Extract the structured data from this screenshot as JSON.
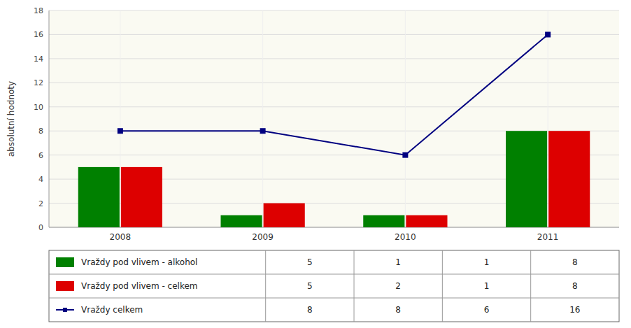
{
  "chart_data": {
    "type": "bar",
    "ylabel": "absolutní hodnoty",
    "categories": [
      "2008",
      "2009",
      "2010",
      "2011"
    ],
    "series": [
      {
        "name": "Vraždy pod vlivem - alkohol",
        "type": "bar",
        "color": "#008000",
        "values": [
          5,
          1,
          1,
          8
        ]
      },
      {
        "name": "Vraždy pod vlivem - celkem",
        "type": "bar",
        "color": "#dd0000",
        "values": [
          5,
          2,
          1,
          8
        ]
      },
      {
        "name": "Vraždy celkem",
        "type": "line",
        "color": "#000080",
        "marker": "square",
        "values": [
          8,
          8,
          6,
          16
        ]
      }
    ],
    "ylim": [
      0,
      18
    ],
    "yticks": [
      0,
      2,
      4,
      6,
      8,
      10,
      12,
      14,
      16,
      18
    ],
    "grid": true
  }
}
